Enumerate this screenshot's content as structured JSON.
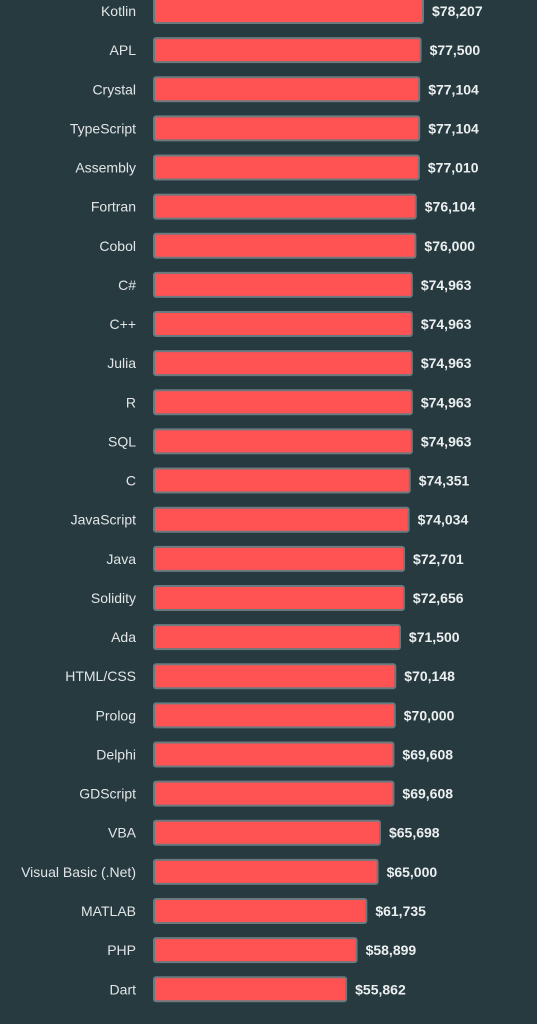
{
  "chart_data": {
    "type": "bar",
    "orientation": "horizontal",
    "title": "",
    "xlabel": "",
    "ylabel": "",
    "categories": [
      "Kotlin",
      "APL",
      "Crystal",
      "TypeScript",
      "Assembly",
      "Fortran",
      "Cobol",
      "C#",
      "C++",
      "Julia",
      "R",
      "SQL",
      "C",
      "JavaScript",
      "Java",
      "Solidity",
      "Ada",
      "HTML/CSS",
      "Prolog",
      "Delphi",
      "GDScript",
      "VBA",
      "Visual Basic (.Net)",
      "MATLAB",
      "PHP",
      "Dart"
    ],
    "values": [
      78207,
      77500,
      77104,
      77104,
      77010,
      76104,
      76000,
      74963,
      74963,
      74963,
      74963,
      74963,
      74351,
      74034,
      72701,
      72656,
      71500,
      70148,
      70000,
      69608,
      69608,
      65698,
      65000,
      61735,
      58899,
      55862
    ],
    "value_labels": [
      "$78,207",
      "$77,500",
      "$77,104",
      "$77,104",
      "$77,010",
      "$76,104",
      "$76,000",
      "$74,963",
      "$74,963",
      "$74,963",
      "$74,963",
      "$74,963",
      "$74,351",
      "$74,034",
      "$72,701",
      "$72,656",
      "$71,500",
      "$70,148",
      "$70,000",
      "$69,608",
      "$69,608",
      "$65,698",
      "$65,000",
      "$61,735",
      "$58,899",
      "$55,862"
    ],
    "xlim": [
      0,
      78207
    ],
    "grid": false,
    "legend": "none",
    "colors": {
      "background": "#263a40",
      "bar_fill": "#ff5252",
      "bar_stroke": "#6b7a7f",
      "category_text": "#e3e6e7",
      "value_text": "#eceff0"
    }
  }
}
